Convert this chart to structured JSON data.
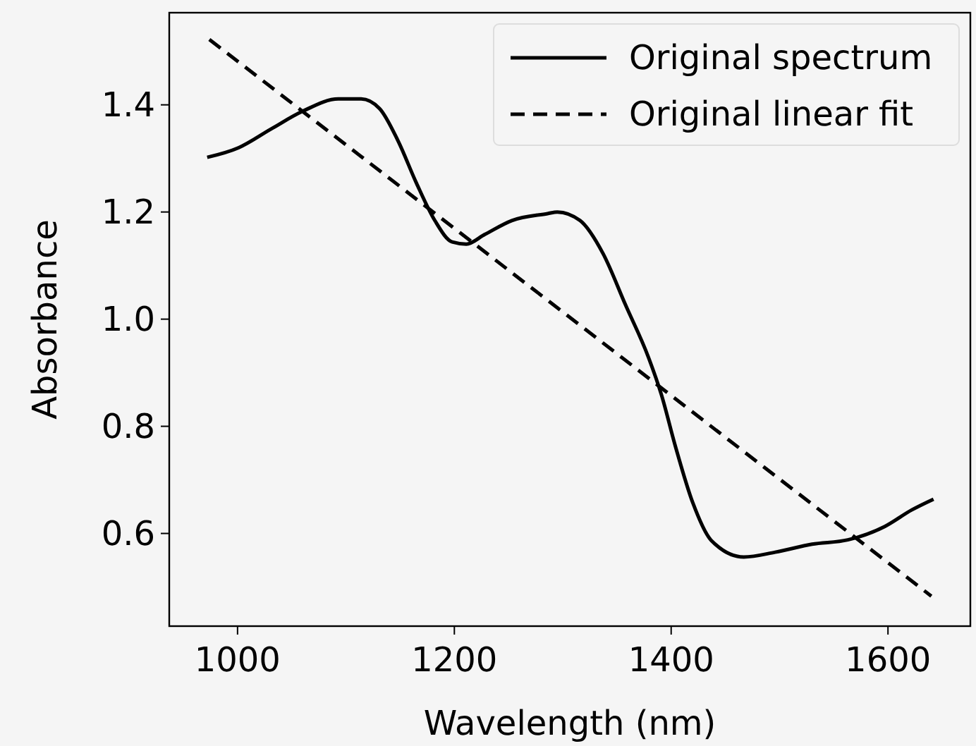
{
  "chart_data": {
    "type": "line",
    "xlabel": "Wavelength (nm)",
    "ylabel": "Absorbance",
    "xlim": [
      937,
      1676
    ],
    "xticks": [
      1000,
      1200,
      1400,
      1600
    ],
    "ylim": [
      0.427,
      1.572
    ],
    "yticks": [
      0.6,
      0.8,
      {
        "value": 1.0,
        "label": "1.0"
      },
      1.2,
      1.4
    ],
    "grid": false,
    "legend": "top right",
    "marker": "none",
    "series": [
      {
        "name": "Original spectrum",
        "color": "#000000",
        "line_style": "solid",
        "x": [
          972,
          1001,
          1031,
          1060,
          1093,
          1114,
          1131,
          1148,
          1165,
          1182,
          1198,
          1211,
          1228,
          1253,
          1286,
          1295,
          1316,
          1337,
          1358,
          1379,
          1391,
          1404,
          1420,
          1437,
          1467,
          1496,
          1530,
          1563,
          1597,
          1622,
          1642
        ],
        "values": [
          1.302,
          1.32,
          1.355,
          1.388,
          1.411,
          1.411,
          1.393,
          1.333,
          1.254,
          1.184,
          1.144,
          1.14,
          1.158,
          1.184,
          1.197,
          1.2,
          1.184,
          1.123,
          1.026,
          0.929,
          0.859,
          0.762,
          0.657,
          0.587,
          0.556,
          0.565,
          0.58,
          0.588,
          0.613,
          0.644,
          0.664
        ]
      },
      {
        "name": "Original linear fit",
        "color": "#000000",
        "line_style": "dashed",
        "x": [
          974,
          1640
        ],
        "values": [
          1.522,
          0.483
        ]
      }
    ]
  }
}
